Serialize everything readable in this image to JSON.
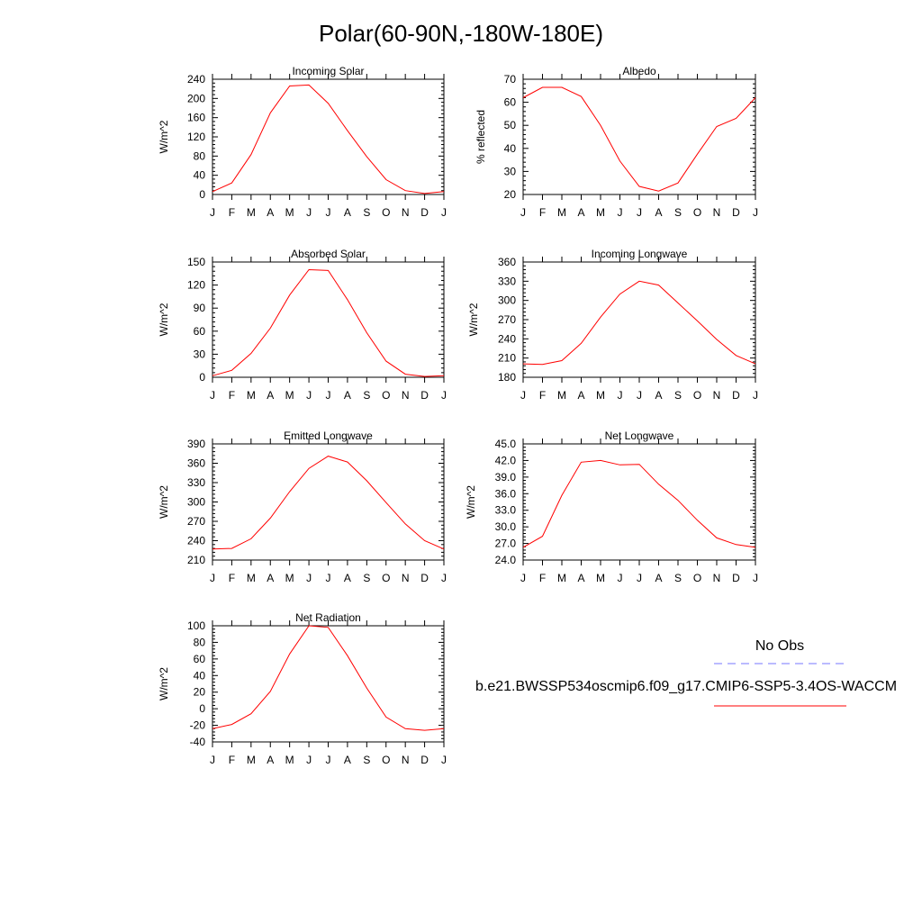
{
  "page": {
    "title": "Polar(60-90N,-180W-180E)"
  },
  "legend": {
    "obs_label": "No Obs",
    "case_label": "b.e21.BWSSP534oscmip6.f09_g17.CMIP6-SSP5-3.4OS-WACCM",
    "obs_color": "#7777ff",
    "case_color": "#ff0000"
  },
  "chart_data": [
    {
      "type": "line",
      "title": "Incoming Solar",
      "ylabel": "W/m^2",
      "x": [
        "J",
        "F",
        "M",
        "A",
        "M",
        "J",
        "J",
        "A",
        "S",
        "O",
        "N",
        "D",
        "J"
      ],
      "ylim": [
        0,
        240
      ],
      "yticks": [
        "0",
        "40",
        "80",
        "120",
        "160",
        "200",
        "240"
      ],
      "series": [
        {
          "values": [
            6,
            24,
            83,
            170,
            226,
            228,
            190,
            133,
            79,
            31,
            8,
            2,
            6
          ],
          "color": "#ff0000"
        }
      ]
    },
    {
      "type": "line",
      "title": "Albedo",
      "ylabel": "% reflected",
      "x": [
        "J",
        "F",
        "M",
        "A",
        "M",
        "J",
        "J",
        "A",
        "S",
        "O",
        "N",
        "D",
        "J"
      ],
      "ylim": [
        20,
        70
      ],
      "yticks": [
        "20",
        "30",
        "40",
        "50",
        "60",
        "70"
      ],
      "series": [
        {
          "values": [
            62,
            66.5,
            66.5,
            62.5,
            50,
            34.5,
            23.5,
            21.5,
            25,
            37.5,
            49.5,
            53,
            62
          ],
          "color": "#ff0000"
        }
      ]
    },
    {
      "type": "line",
      "title": "Absorbed Solar",
      "ylabel": "W/m^2",
      "x": [
        "J",
        "F",
        "M",
        "A",
        "M",
        "J",
        "J",
        "A",
        "S",
        "O",
        "N",
        "D",
        "J"
      ],
      "ylim": [
        0,
        150
      ],
      "yticks": [
        "0",
        "30",
        "60",
        "90",
        "120",
        "150"
      ],
      "series": [
        {
          "values": [
            2,
            9,
            31,
            64,
            107,
            140,
            139,
            101,
            58,
            21,
            4,
            1,
            2
          ],
          "color": "#ff0000"
        }
      ]
    },
    {
      "type": "line",
      "title": "Incoming Longwave",
      "ylabel": "W/m^2",
      "x": [
        "J",
        "F",
        "M",
        "A",
        "M",
        "J",
        "J",
        "A",
        "S",
        "O",
        "N",
        "D",
        "J"
      ],
      "ylim": [
        180,
        360
      ],
      "yticks": [
        "180",
        "210",
        "240",
        "270",
        "300",
        "330",
        "360"
      ],
      "series": [
        {
          "values": [
            201,
            200,
            206,
            233,
            274,
            310,
            330,
            324,
            296,
            268,
            239,
            214,
            201
          ],
          "color": "#ff0000"
        }
      ]
    },
    {
      "type": "line",
      "title": "Emitted Longwave",
      "ylabel": "W/m^2",
      "x": [
        "J",
        "F",
        "M",
        "A",
        "M",
        "J",
        "J",
        "A",
        "S",
        "O",
        "N",
        "D",
        "J"
      ],
      "ylim": [
        210,
        390
      ],
      "yticks": [
        "210",
        "240",
        "270",
        "300",
        "330",
        "360",
        "390"
      ],
      "series": [
        {
          "values": [
            227,
            228,
            243,
            275,
            316,
            352,
            371,
            362,
            333,
            299,
            266,
            240,
            227
          ],
          "color": "#ff0000"
        }
      ]
    },
    {
      "type": "line",
      "title": "Net Longwave",
      "ylabel": "W/m^2",
      "x": [
        "J",
        "F",
        "M",
        "A",
        "M",
        "J",
        "J",
        "A",
        "S",
        "O",
        "N",
        "D",
        "J"
      ],
      "ylim": [
        24,
        45
      ],
      "yticks": [
        "24.0",
        "27.0",
        "30.0",
        "33.0",
        "36.0",
        "39.0",
        "42.0",
        "45.0"
      ],
      "series": [
        {
          "values": [
            26.3,
            28.3,
            35.7,
            41.7,
            42.0,
            41.2,
            41.3,
            37.7,
            34.8,
            31.2,
            28.0,
            26.8,
            26.3
          ],
          "color": "#ff0000"
        }
      ]
    },
    {
      "type": "line",
      "title": "Net Radiation",
      "ylabel": "W/m^2",
      "x": [
        "J",
        "F",
        "M",
        "A",
        "M",
        "J",
        "J",
        "A",
        "S",
        "O",
        "N",
        "D",
        "J"
      ],
      "ylim": [
        -40,
        100
      ],
      "yticks": [
        "-40",
        "-20",
        "0",
        "20",
        "40",
        "60",
        "80",
        "100"
      ],
      "series": [
        {
          "values": [
            -24,
            -19,
            -6,
            21,
            66,
            100,
            98,
            64,
            25,
            -10,
            -24,
            -26,
            -24
          ],
          "color": "#ff0000"
        }
      ]
    }
  ]
}
